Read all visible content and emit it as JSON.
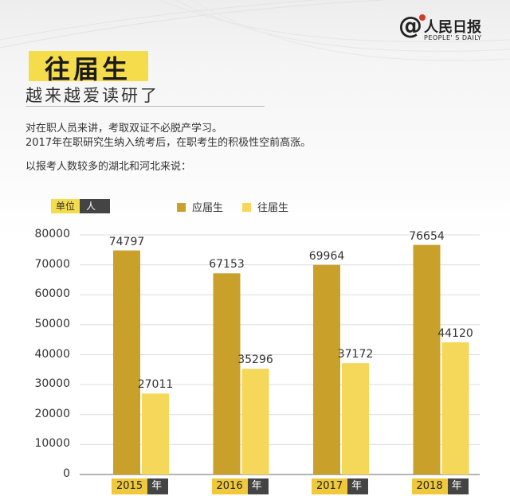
{
  "header": {
    "logo_name": "人民日报",
    "logo_sub": "PEOPLE' S DAILY",
    "title": "往届生",
    "subtitle": "越来越爱读研了",
    "para1": "对在职人员来讲，考取双证不必脱产学习。",
    "para2": "2017年在职研究生纳入统考后，在职考生的积极性空前高涨。",
    "para3": "以报考人数较多的湖北和河北来说："
  },
  "colors": {
    "current": "#c9a12a",
    "previous": "#f5d75a",
    "highlight": "#f5dc4a",
    "dark": "#444444"
  },
  "chart_data": {
    "type": "bar",
    "unit_key": "单位",
    "unit_value": "人",
    "categories": [
      "2015",
      "2016",
      "2017",
      "2018"
    ],
    "category_suffix": "年",
    "series": [
      {
        "name": "应届生",
        "values": [
          74797,
          67153,
          69964,
          76654
        ]
      },
      {
        "name": "往届生",
        "values": [
          27011,
          35296,
          37172,
          44120
        ]
      }
    ],
    "yticks": [
      "80000",
      "70000",
      "60000",
      "50000",
      "40000",
      "30000",
      "20000",
      "10000",
      "0"
    ],
    "ylim": [
      0,
      80000
    ],
    "grid": true,
    "legend": "top"
  }
}
